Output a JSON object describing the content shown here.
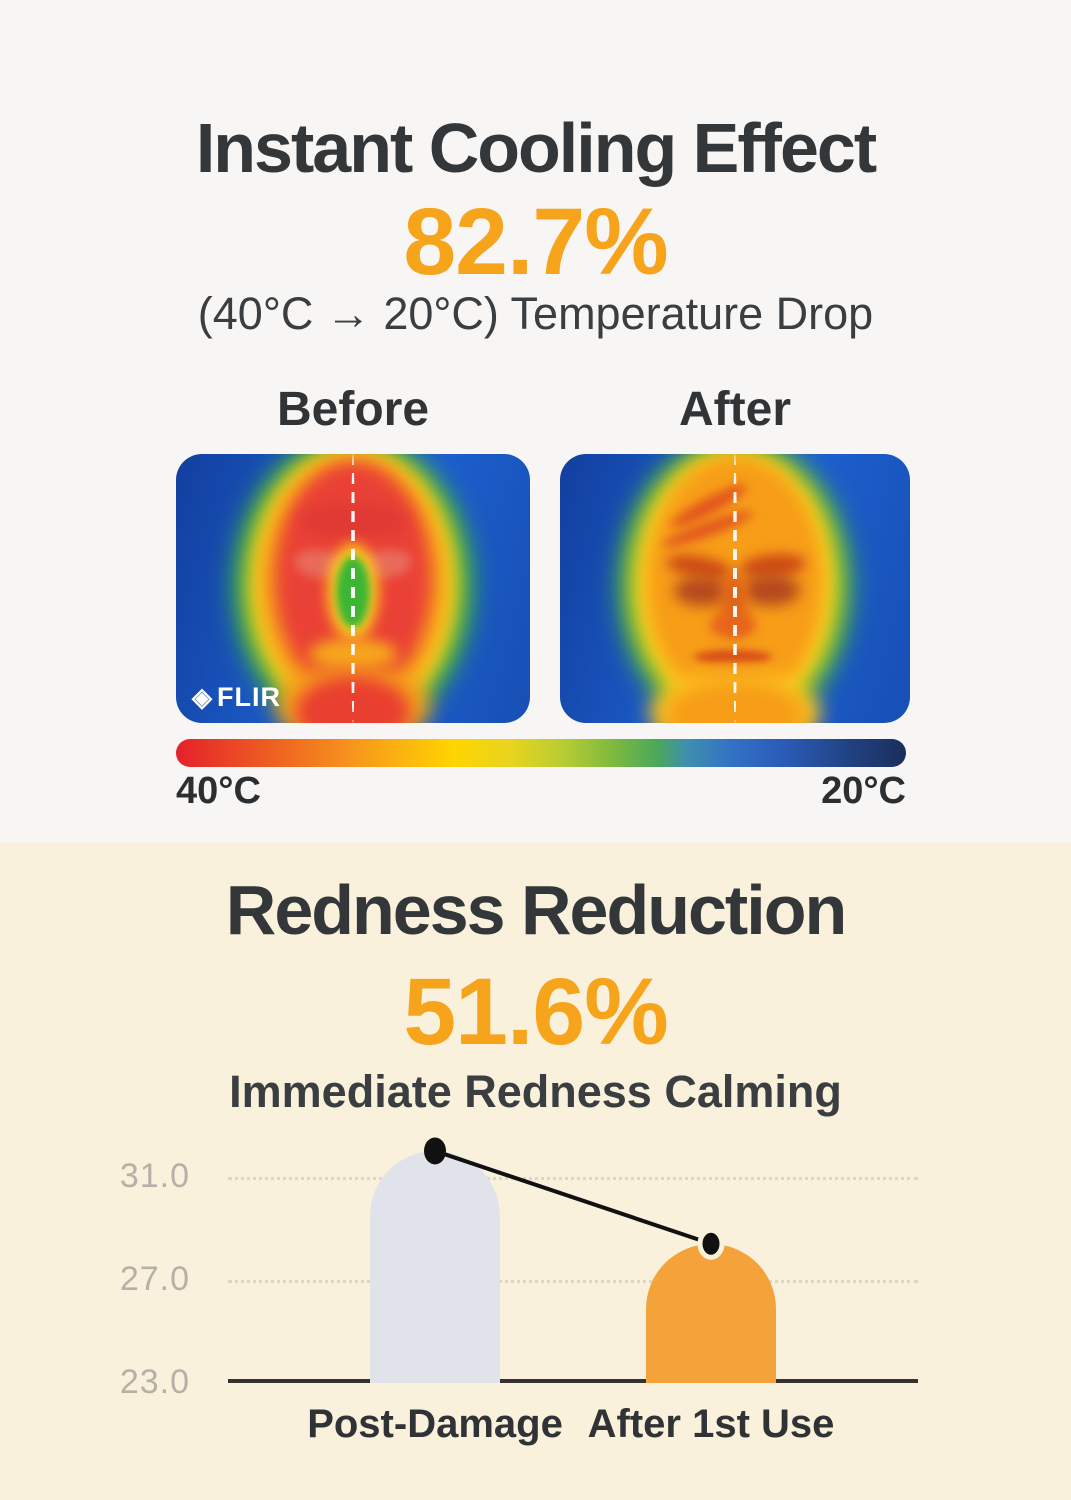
{
  "colors": {
    "accent_orange": "#F6A41C",
    "top_background": "#F7F6F4",
    "bottom_background": "#FAF1DC",
    "heading_text": "#33373A",
    "axis_tick_text": "#B5B1A8",
    "baseline": "#35332F"
  },
  "cooling_section": {
    "title": "Instant Cooling Effect",
    "percentage": "82.7%",
    "subtitle": "(40°C → 20°C) Temperature Drop",
    "before_label": "Before",
    "after_label": "After",
    "flir_brand": "FLIR",
    "scale_left_label": "40°C",
    "scale_right_label": "20°C"
  },
  "redness_section": {
    "title": "Redness Reduction",
    "percentage": "51.6%",
    "subtitle": "Immediate Redness Calming"
  },
  "chart_data": {
    "type": "bar",
    "title": "Immediate Redness Calming",
    "categories": [
      "Post-Damage",
      "After 1st Use"
    ],
    "values": [
      32.0,
      28.4
    ],
    "bar_colors": [
      "#E1E3EA",
      "#F3A33A"
    ],
    "yticks": [
      31.0,
      27.0,
      23.0
    ],
    "ylim": [
      23.0,
      33.2
    ],
    "grid": "dotted horizontal lines at 31.0 and 27.0",
    "baseline": 23.0,
    "marker_dot_color": "#111111",
    "connector_line_color": "#111111",
    "legend_position": "none"
  }
}
